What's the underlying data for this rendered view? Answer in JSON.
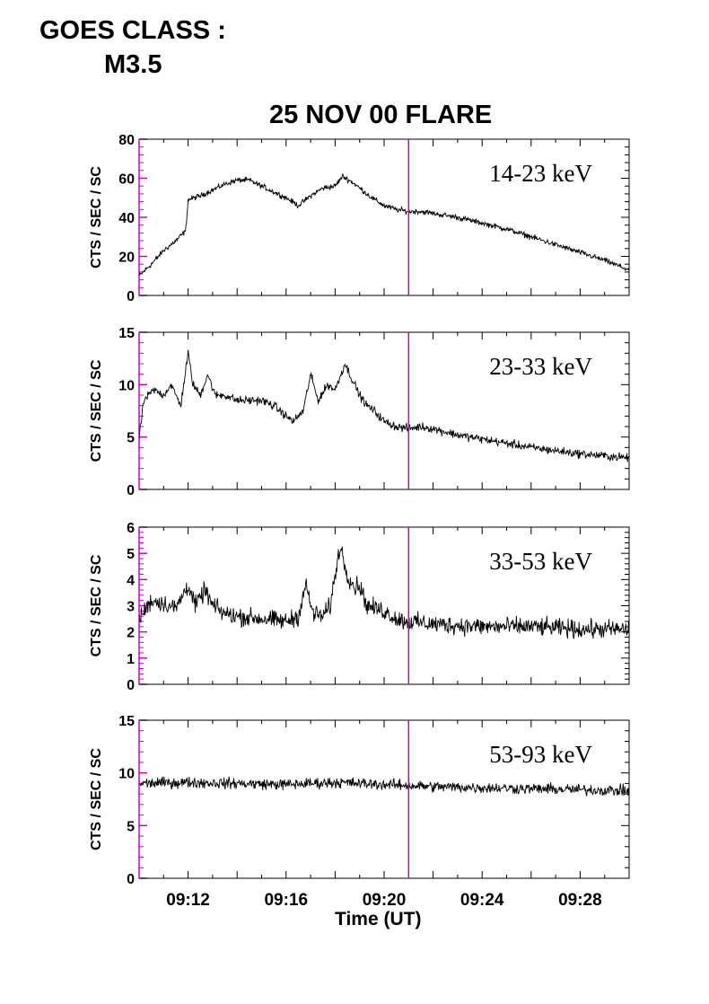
{
  "header": {
    "goes_line1": "GOES CLASS :",
    "goes_line2": "M3.5"
  },
  "chart_data": {
    "type": "line",
    "title": "25 NOV 00 FLARE",
    "xlabel": "Time (UT)",
    "x_unit": "minutes",
    "xlim": [
      "09:10",
      "09:30"
    ],
    "x_tick_labels": [
      "09:12",
      "09:16",
      "09:20",
      "09:24",
      "09:28"
    ],
    "x_tick_values": [
      "09:12",
      "09:16",
      "09:20",
      "09:24",
      "09:28"
    ],
    "marker_time": "09:21",
    "marker_color": "#cc00cc",
    "line_color": "#000000",
    "panels": [
      {
        "band": "14-23 keV",
        "ylabel": "CTS / SEC / SC",
        "ylim": [
          0,
          80
        ],
        "y_tick_labels": [
          "0",
          "20",
          "40",
          "60",
          "80"
        ],
        "y_tick_values": [
          0,
          20,
          40,
          60,
          80
        ],
        "series": {
          "x": [
            "09:10",
            "09:10.5",
            "09:11",
            "09:11.5",
            "09:11.9",
            "09:12",
            "09:12.5",
            "09:13",
            "09:13.5",
            "09:14",
            "09:14.5",
            "09:15",
            "09:15.5",
            "09:16",
            "09:16.5",
            "09:17",
            "09:17.5",
            "09:18",
            "09:18.3",
            "09:18.7",
            "09:19",
            "09:19.5",
            "09:20",
            "09:20.5",
            "09:21",
            "09:21.5",
            "09:22",
            "09:23",
            "09:24",
            "09:25",
            "09:26",
            "09:27",
            "09:28",
            "09:29",
            "09:30"
          ],
          "y": [
            10,
            16,
            23,
            28,
            33,
            49,
            51,
            54,
            57,
            59,
            59,
            56,
            53,
            50,
            46,
            51,
            55,
            56,
            61,
            58,
            55,
            50,
            46,
            44,
            43,
            43,
            42,
            40,
            37,
            34,
            30,
            26,
            22,
            18,
            13
          ]
        },
        "noise": 1.2
      },
      {
        "band": "23-33 keV",
        "ylabel": "CTS / SEC / SC",
        "ylim": [
          0,
          15
        ],
        "y_tick_labels": [
          "0",
          "5",
          "10",
          "15"
        ],
        "y_tick_values": [
          0,
          5,
          10,
          15
        ],
        "series": {
          "x": [
            "09:10",
            "09:10.2",
            "09:10.6",
            "09:11",
            "09:11.3",
            "09:11.7",
            "09:12",
            "09:12.2",
            "09:12.5",
            "09:12.8",
            "09:13.1",
            "09:13.5",
            "09:14",
            "09:14.5",
            "09:15",
            "09:15.5",
            "09:16",
            "09:16.3",
            "09:16.7",
            "09:17",
            "09:17.3",
            "09:17.7",
            "09:18",
            "09:18.4",
            "09:18.7",
            "09:19",
            "09:19.3",
            "09:19.6",
            "09:20",
            "09:20.5",
            "09:21",
            "09:21.5",
            "09:22",
            "09:23",
            "09:24",
            "09:25",
            "09:26",
            "09:27",
            "09:28",
            "09:29",
            "09:30"
          ],
          "y": [
            5,
            8.5,
            9.5,
            9,
            10,
            8,
            13,
            10,
            9,
            11,
            9,
            9,
            8.5,
            8.5,
            8.5,
            8,
            7,
            6.5,
            7.5,
            11,
            8.5,
            10,
            9.5,
            12,
            10.5,
            9,
            8,
            7.5,
            6.5,
            6,
            5.8,
            6,
            5.8,
            5.2,
            4.8,
            4.4,
            4,
            3.7,
            3.4,
            3.2,
            3
          ]
        },
        "noise": 0.35
      },
      {
        "band": "33-53 keV",
        "ylabel": "CTS / SEC / SC",
        "ylim": [
          0,
          6
        ],
        "y_tick_labels": [
          "0",
          "1",
          "2",
          "3",
          "4",
          "5",
          "6"
        ],
        "y_tick_values": [
          0,
          1,
          2,
          3,
          4,
          5,
          6
        ],
        "series": {
          "x": [
            "09:10",
            "09:10.5",
            "09:11",
            "09:11.5",
            "09:12",
            "09:12.3",
            "09:12.7",
            "09:13",
            "09:13.5",
            "09:14",
            "09:15",
            "09:16",
            "09:16.5",
            "09:16.8",
            "09:17.1",
            "09:17.5",
            "09:17.8",
            "09:18.2",
            "09:18.5",
            "09:18.8",
            "09:19",
            "09:19.3",
            "09:19.6",
            "09:20",
            "09:20.5",
            "09:21",
            "09:22",
            "09:24",
            "09:26",
            "09:28",
            "09:30"
          ],
          "y": [
            2.5,
            3.2,
            3.1,
            2.9,
            3.8,
            3,
            3.6,
            3,
            2.7,
            2.6,
            2.5,
            2.4,
            2.6,
            3.8,
            2.7,
            2.6,
            3,
            5.3,
            4.2,
            3.7,
            3.8,
            3,
            2.9,
            2.8,
            2.5,
            2.4,
            2.3,
            2.2,
            2.2,
            2.1,
            2.1
          ]
        },
        "noise": 0.3
      },
      {
        "band": "53-93 keV",
        "ylabel": "CTS / SEC / SC",
        "ylim": [
          0,
          15
        ],
        "y_tick_labels": [
          "0",
          "5",
          "10",
          "15"
        ],
        "y_tick_values": [
          0,
          5,
          10,
          15
        ],
        "series": {
          "x": [
            "09:10",
            "09:12",
            "09:14",
            "09:16",
            "09:18",
            "09:20",
            "09:22",
            "09:24",
            "09:26",
            "09:28",
            "09:30"
          ],
          "y": [
            9,
            9.1,
            9,
            8.9,
            9.1,
            8.9,
            8.7,
            8.6,
            8.5,
            8.4,
            8.3
          ]
        },
        "noise": 0.45
      }
    ]
  }
}
